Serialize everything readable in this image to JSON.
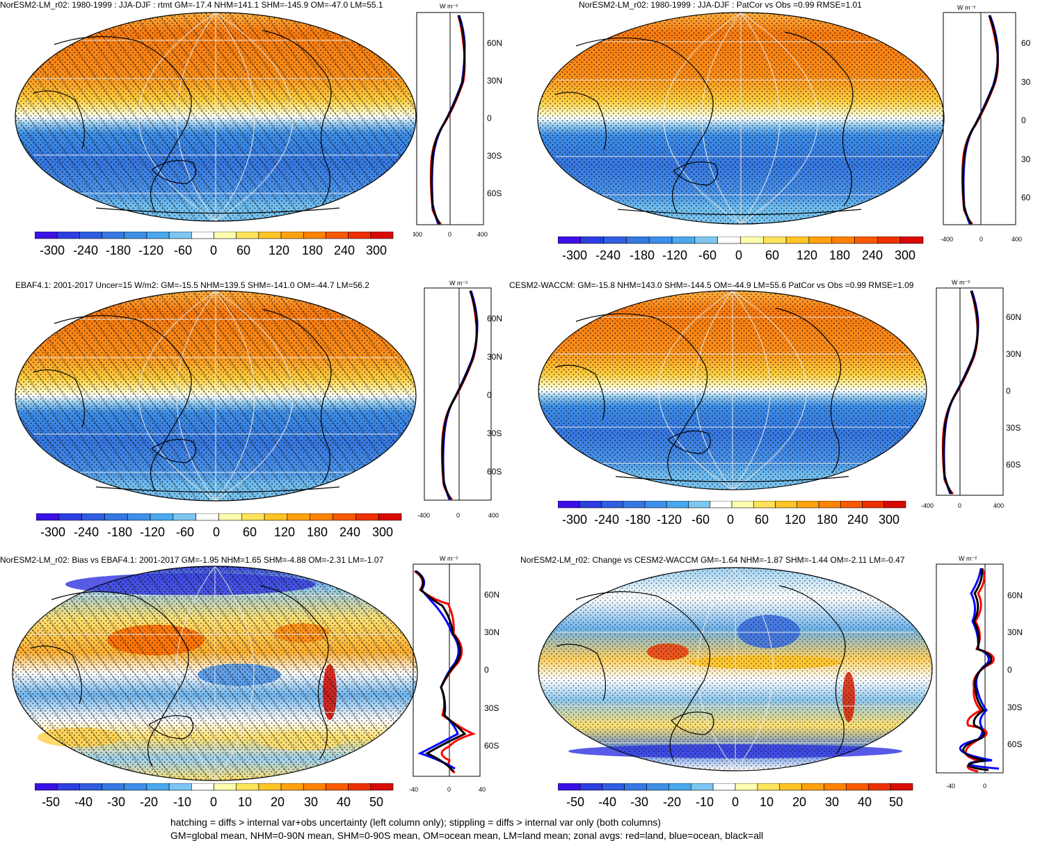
{
  "colors": {
    "land": "#ff0000",
    "ocean": "#0000ff",
    "all": "#000000",
    "abs_scale": [
      "#3a10e6",
      "#2d3fe0",
      "#2f5ee0",
      "#3578e3",
      "#3e8fe8",
      "#4aa8ee",
      "#7cc6f1",
      "#ffffff",
      "#fffeb0",
      "#ffe35a",
      "#ffc425",
      "#ffa20d",
      "#ff8200",
      "#f95a00",
      "#ee3000",
      "#d90a00"
    ],
    "diff_scale": [
      "#3a10e6",
      "#2d3fe0",
      "#2f5ee0",
      "#3578e3",
      "#3e8fe8",
      "#4aa8ee",
      "#7cc6f1",
      "#ffffff",
      "#fffeb0",
      "#ffe35a",
      "#ffc425",
      "#ffa20d",
      "#ff8200",
      "#f95a00",
      "#ee3000",
      "#d90a00"
    ]
  },
  "panels": [
    {
      "title": "NorESM2-LM_r02: 1980-1999 : JJA-DJF : rtmt GM=-17.4 NHM=141.1 SHM=-145.9 OM=-47.0 LM=55.1",
      "map_style": "abs",
      "hatching": true,
      "profile_units": "W m⁻²",
      "profile_lat_labels": [
        "60N",
        "30N",
        "0",
        "30S",
        "60S"
      ],
      "profile_x_ticks": [
        "-400",
        "0",
        "400"
      ],
      "colorbar_labels": [
        "-300",
        "-240",
        "-180",
        "-120",
        "-60",
        "0",
        "60",
        "120",
        "180",
        "240",
        "300"
      ]
    },
    {
      "title": "NorESM2-LM_r02: 1980-1999 : JJA-DJF : PatCor vs Obs =0.99 RMSE=1.01",
      "map_style": "abs",
      "hatching": false,
      "profile_units": "W m⁻²",
      "profile_lat_labels": [
        "60",
        "30",
        "0",
        "30",
        "60"
      ],
      "profile_x_ticks": [
        "-400",
        "0",
        "400"
      ],
      "colorbar_labels": [
        "-300",
        "-240",
        "-180",
        "-120",
        "-60",
        "0",
        "60",
        "120",
        "180",
        "240",
        "300"
      ]
    },
    {
      "title": "EBAF4.1: 2001-2017 Uncer=15 W/m2: GM=-15.5 NHM=139.5 SHM=-141.0 OM=-44.7 LM=56.2",
      "map_style": "abs",
      "hatching": true,
      "profile_units": "W m⁻²",
      "profile_lat_labels": [
        "60N",
        "30N",
        "0",
        "30S",
        "60S"
      ],
      "profile_x_ticks": [
        "-400",
        "0",
        "400"
      ],
      "colorbar_labels": [
        "-300",
        "-240",
        "-180",
        "-120",
        "-60",
        "0",
        "60",
        "120",
        "180",
        "240",
        "300"
      ]
    },
    {
      "title": "CESM2-WACCM: GM=-15.8 NHM=143.0 SHM=-144.5 OM=-44.9 LM=55.6 PatCor vs Obs =0.99 RMSE=1.09",
      "map_style": "abs",
      "hatching": false,
      "profile_units": "W m⁻²",
      "profile_lat_labels": [
        "60N",
        "30N",
        "0",
        "30S",
        "60S"
      ],
      "profile_x_ticks": [
        "-400",
        "0",
        "400"
      ],
      "colorbar_labels": [
        "-300",
        "-240",
        "-180",
        "-120",
        "-60",
        "0",
        "60",
        "120",
        "180",
        "240",
        "300"
      ]
    },
    {
      "title": "NorESM2-LM_r02: Bias vs EBAF4.1: 2001-2017 GM=-1.95 NHM=1.65 SHM=-4.88 OM=-2.31 LM=-1.07",
      "map_style": "diff",
      "hatching": true,
      "profile_units": "W m⁻²",
      "profile_lat_labels": [
        "60N",
        "30N",
        "0",
        "30S",
        "60S"
      ],
      "profile_x_ticks": [
        "-40",
        "0",
        "40"
      ],
      "colorbar_labels": [
        "-50",
        "-40",
        "-30",
        "-20",
        "-10",
        "0",
        "10",
        "20",
        "30",
        "40",
        "50"
      ]
    },
    {
      "title": "NorESM2-LM_r02: Change vs CESM2-WACCM GM=-1.64 NHM=-1.87 SHM=-1.44 OM=-2.11 LM=-0.47",
      "map_style": "diff",
      "hatching": false,
      "profile_units": "W m⁻²",
      "profile_lat_labels": [
        "60N",
        "30N",
        "0",
        "30S",
        "60S"
      ],
      "profile_x_ticks": [
        "-40",
        "0"
      ],
      "colorbar_labels": [
        "-50",
        "-40",
        "-30",
        "-20",
        "-10",
        "0",
        "10",
        "20",
        "30",
        "40",
        "50"
      ]
    }
  ],
  "footnote": {
    "line1": "hatching = diffs > internal var+obs uncertainty (left column only); stippling = diffs > internal var only (both columns)",
    "line2": "GM=global mean, NHM=0-90N mean, SHM=0-90S mean, OM=ocean mean, LM=land mean; zonal avgs: red=land, blue=ocean, black=all"
  }
}
